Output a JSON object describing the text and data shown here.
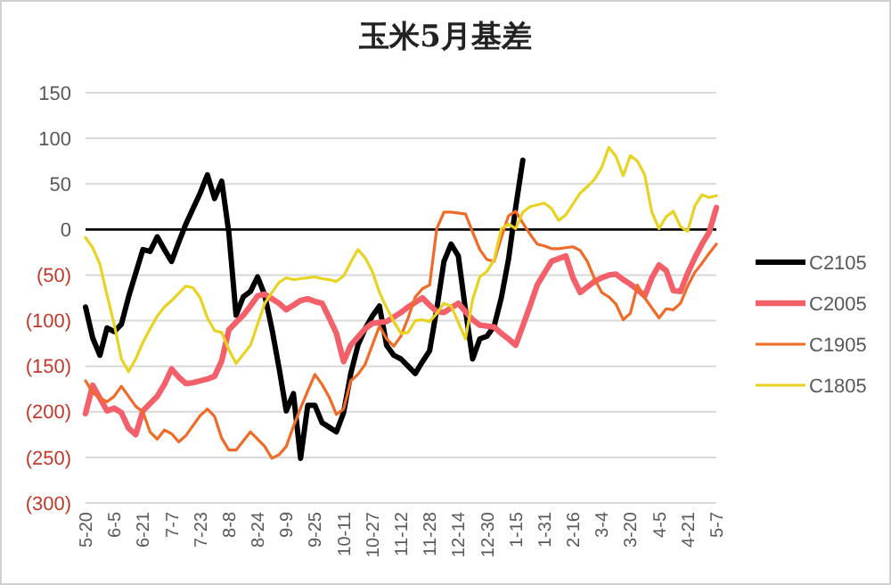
{
  "chart_data": {
    "type": "line",
    "title": "玉米5月基差",
    "categories": [
      "5-20",
      null,
      null,
      null,
      "6-5",
      null,
      null,
      null,
      "6-21",
      null,
      null,
      null,
      "7-7",
      null,
      null,
      null,
      "7-23",
      null,
      null,
      null,
      "8-8",
      null,
      null,
      null,
      "8-24",
      null,
      null,
      null,
      "9-9",
      null,
      null,
      null,
      "9-25",
      null,
      null,
      null,
      "10-11",
      null,
      null,
      null,
      "10-27",
      null,
      null,
      null,
      "11-12",
      null,
      null,
      null,
      "11-28",
      null,
      null,
      null,
      "12-14",
      null,
      null,
      null,
      "12-30",
      null,
      null,
      null,
      "1-15",
      null,
      null,
      null,
      "1-31",
      null,
      null,
      null,
      "2-16",
      null,
      null,
      null,
      "3-4",
      null,
      null,
      null,
      "3-20",
      null,
      null,
      null,
      "4-5",
      null,
      null,
      null,
      "4-21",
      null,
      null,
      null,
      "5-7"
    ],
    "ylim": [
      -300,
      150
    ],
    "yticks": [
      {
        "value": 150,
        "label": "150"
      },
      {
        "value": 100,
        "label": "100"
      },
      {
        "value": 50,
        "label": "50"
      },
      {
        "value": 0,
        "label": "0"
      },
      {
        "value": -50,
        "label": "(50)"
      },
      {
        "value": -100,
        "label": "(100)"
      },
      {
        "value": -150,
        "label": "(150)"
      },
      {
        "value": -200,
        "label": "(200)"
      },
      {
        "value": -250,
        "label": "(250)"
      },
      {
        "value": -300,
        "label": "(300)"
      }
    ],
    "grid": "y",
    "legend": "right",
    "line_style": "solid",
    "marker": "none",
    "ref_lines": [
      {
        "axis": "y",
        "value": 0,
        "color": "#000000"
      }
    ],
    "series": [
      {
        "name": "C2105",
        "color": "#000000",
        "values": [
          -85,
          -119,
          -138,
          -108,
          -112,
          -104,
          -74,
          -48,
          -22,
          -24,
          -8,
          -22,
          -35,
          -14,
          6,
          23,
          40,
          60,
          34,
          53,
          -4,
          -94,
          -74,
          -68,
          -52,
          -72,
          -109,
          -152,
          -199,
          -180,
          -251,
          -193,
          -193,
          -212,
          -217,
          -222,
          -201,
          -158,
          -127,
          -109,
          -95,
          -84,
          -127,
          -138,
          -142,
          -150,
          -158,
          -145,
          -133,
          -87,
          -35,
          -16,
          -29,
          -88,
          -142,
          -120,
          -117,
          -106,
          -75,
          -33,
          24,
          76,
          null,
          null,
          null,
          null,
          null,
          null,
          null,
          null,
          null,
          null,
          null,
          null,
          null,
          null,
          null,
          null,
          null,
          null,
          null,
          null,
          null,
          null,
          null,
          null,
          null,
          null,
          null
        ]
      },
      {
        "name": "C2005",
        "color": "#f4606a",
        "values": [
          -202,
          -171,
          -185,
          -199,
          -196,
          -201,
          -218,
          -225,
          -199,
          -191,
          -183,
          -170,
          -153,
          -162,
          -169,
          -168,
          -166,
          -164,
          -161,
          -144,
          -110,
          -102,
          -94,
          -84,
          -73,
          -71,
          -76,
          -81,
          -88,
          -83,
          -78,
          -76,
          -79,
          -81,
          -97,
          -114,
          -145,
          -127,
          -118,
          -109,
          -103,
          -102,
          -101,
          -96,
          -91,
          -85,
          -80,
          -75,
          -83,
          -90,
          -91,
          -86,
          -81,
          -90,
          -99,
          -105,
          -106,
          -107,
          -114,
          -120,
          -127,
          -106,
          -84,
          -61,
          -48,
          -35,
          -32,
          -29,
          -53,
          -69,
          -63,
          -57,
          -53,
          -50,
          -49,
          -55,
          -60,
          -66,
          -73,
          -53,
          -39,
          -45,
          -67,
          -68,
          -48,
          -31,
          -16,
          -3,
          24
        ]
      },
      {
        "name": "C1905",
        "color": "#f06a28",
        "values": [
          -166,
          -179,
          -185,
          -189,
          -183,
          -172,
          -183,
          -194,
          -200,
          -222,
          -230,
          -220,
          -224,
          -233,
          -226,
          -215,
          -204,
          -197,
          -205,
          -229,
          -242,
          -242,
          -232,
          -222,
          -230,
          -238,
          -251,
          -247,
          -238,
          -216,
          -196,
          -177,
          -159,
          -170,
          -184,
          -203,
          -197,
          -166,
          -159,
          -148,
          -127,
          -106,
          -120,
          -128,
          -117,
          -97,
          -74,
          -65,
          -61,
          1,
          19,
          19,
          18,
          17,
          -3,
          -22,
          -33,
          -35,
          -9,
          15,
          20,
          7,
          -5,
          -16,
          -18,
          -21,
          -21,
          -20,
          -19,
          -23,
          -35,
          -54,
          -69,
          -74,
          -82,
          -99,
          -92,
          -61,
          -75,
          -86,
          -97,
          -87,
          -88,
          -81,
          -62,
          -47,
          -37,
          -26,
          -16
        ]
      },
      {
        "name": "C1805",
        "color": "#e8d222",
        "values": [
          -9,
          -20,
          -38,
          -72,
          -104,
          -142,
          -156,
          -142,
          -124,
          -109,
          -95,
          -85,
          -78,
          -70,
          -62,
          -64,
          -75,
          -97,
          -111,
          -113,
          -132,
          -147,
          -137,
          -127,
          -104,
          -81,
          -69,
          -58,
          -53,
          -55,
          -54,
          -53,
          -52,
          -54,
          -55,
          -57,
          -51,
          -36,
          -22,
          -31,
          -46,
          -69,
          -86,
          -101,
          -114,
          -113,
          -100,
          -99,
          -101,
          -92,
          -81,
          -84,
          -102,
          -120,
          -77,
          -52,
          -46,
          -33,
          1,
          6,
          1,
          19,
          25,
          27,
          29,
          23,
          10,
          16,
          28,
          40,
          47,
          55,
          68,
          90,
          80,
          59,
          81,
          75,
          60,
          19,
          1,
          14,
          20,
          3,
          -2,
          26,
          38,
          35,
          37
        ]
      }
    ]
  }
}
